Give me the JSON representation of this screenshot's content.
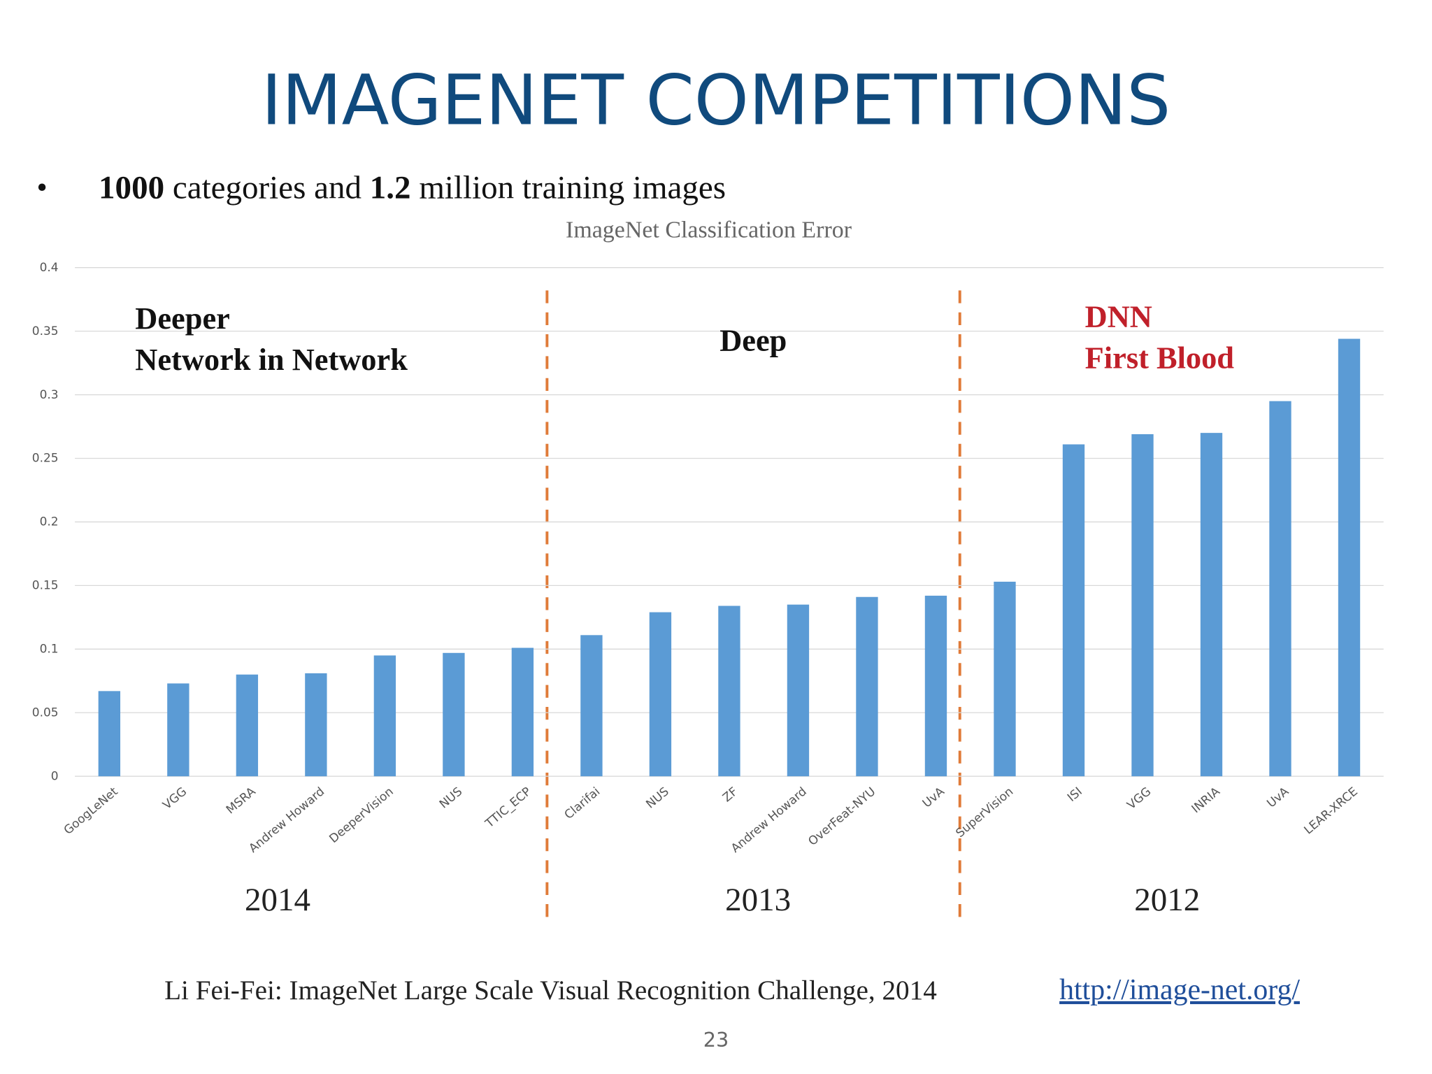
{
  "title": "IMAGENET COMPETITIONS",
  "bullet": [
    {
      "text": "1000",
      "bold": true
    },
    {
      "text": " categories and ",
      "bold": false
    },
    {
      "text": "1.2",
      "bold": true
    },
    {
      "text": " million training images",
      "bold": false
    }
  ],
  "chart_data": {
    "type": "bar",
    "title": "ImageNet Classification Error",
    "categories": [
      "GoogLeNet",
      "VGG",
      "MSRA",
      "Andrew Howard",
      "DeeperVision",
      "NUS",
      "TTIC_ECP",
      "Clarifai",
      "NUS",
      "ZF",
      "Andrew Howard",
      "OverFeat-NYU",
      "UvA",
      "SuperVision",
      "ISI",
      "VGG",
      "INRIA",
      "UvA",
      "LEAR-XRCE"
    ],
    "values": [
      0.067,
      0.073,
      0.08,
      0.081,
      0.095,
      0.097,
      0.101,
      0.111,
      0.129,
      0.134,
      0.135,
      0.141,
      0.142,
      0.153,
      0.261,
      0.269,
      0.27,
      0.295,
      0.344
    ],
    "color": "#5b9bd5",
    "ylim": [
      0,
      0.4
    ],
    "yticks": [
      0,
      0.05,
      0.1,
      0.15,
      0.2,
      0.25,
      0.3,
      0.35,
      0.4
    ],
    "grid": true,
    "groups": [
      {
        "year": "2014",
        "label": [
          "Deeper",
          "Network in Network"
        ],
        "color": "#111111"
      },
      {
        "year": "2013",
        "label": [
          "Deep"
        ],
        "color": "#111111"
      },
      {
        "year": "2012",
        "label": [
          "DNN",
          "First Blood"
        ],
        "color": "#c0202a"
      }
    ]
  },
  "citation": "Li Fei-Fei: ImageNet Large Scale Visual Recognition Challenge, 2014",
  "link": "http://image-net.org/",
  "page_number": "23"
}
